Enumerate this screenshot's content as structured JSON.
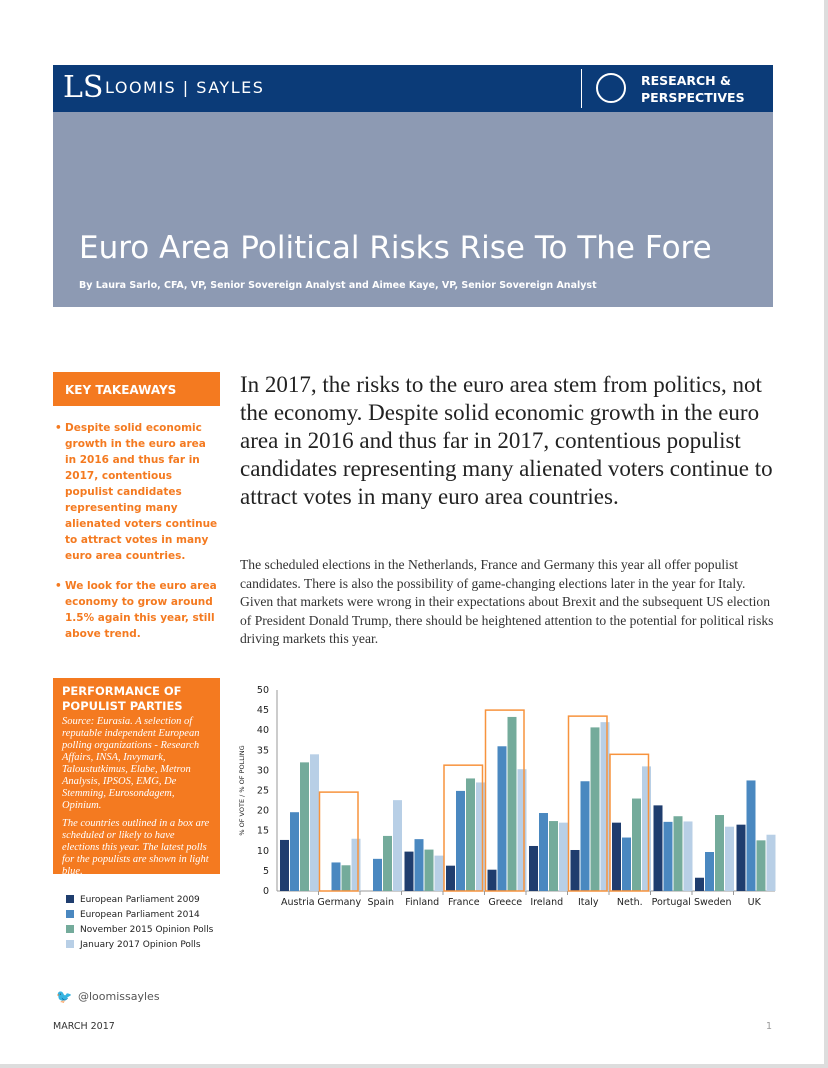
{
  "header": {
    "logo_mark": "LS",
    "logo_text": "LOOMIS | SAYLES",
    "section_icon": "compass-icon",
    "section": "RESEARCH &\nPERSPECTIVES"
  },
  "banner": {
    "title": "Euro Area Political Risks Rise To The Fore",
    "byline": "By Laura Sarlo, CFA, VP, Senior Sovereign Analyst and Aimee Kaye, VP, Senior Sovereign Analyst"
  },
  "key_takeaways": {
    "heading": "KEY TAKEAWAYS",
    "items": [
      "Despite solid economic growth in the euro area in 2016 and thus far in 2017, contentious populist candidates representing many alienated voters continue to attract votes in many euro area countries.",
      "We look for the euro area economy to grow around 1.5% again this year, still above trend."
    ]
  },
  "lead": "In 2017, the risks to the euro area stem from politics, not the economy. Despite solid economic growth in the euro area in 2016 and thus far in 2017, contentious populist candidates representing many alienated voters continue to attract votes in many euro area countries.",
  "paragraph": "The scheduled elections in the Netherlands, France and Germany this year all offer populist candidates. There is also the possibility of game-changing elections later in the year for Italy. Given that markets were wrong in their expectations about Brexit and the subsequent US election of President Donald Trump, there should be heightened attention to the potential for political risks driving markets this year.",
  "performance": {
    "heading": "PERFORMANCE OF POPULIST PARTIES",
    "source": "Source: Eurasia. A selection of reputable independent European polling organizations - Research Affairs, INSA, Invymark, Taloustutkimus, Elabe, Metron Analysis, IPSOS, EMG, De Stemming, Eurosondagem, Opinium.",
    "note": "The countries outlined in a box are scheduled or likely to have elections this year. The latest polls for the populists are shown in light blue."
  },
  "chart_data": {
    "type": "bar",
    "ylabel": "% OF VOTE / % OF POLLING",
    "ylim": [
      0,
      50
    ],
    "yticks": [
      0,
      5,
      10,
      15,
      20,
      25,
      30,
      35,
      40,
      45,
      50
    ],
    "categories": [
      "Austria",
      "Germany",
      "Spain",
      "Finland",
      "France",
      "Greece",
      "Ireland",
      "Italy",
      "Neth.",
      "Portugal",
      "Sweden",
      "UK"
    ],
    "series": [
      {
        "name": "European Parliament 2009",
        "color": "#1f3d6e",
        "values": [
          12.7,
          null,
          null,
          9.8,
          6.3,
          5.3,
          11.2,
          10.2,
          17,
          21.3,
          3.3,
          16.5
        ]
      },
      {
        "name": "European Parliament 2014",
        "color": "#4a88c0",
        "values": [
          19.6,
          7.1,
          8,
          12.9,
          24.9,
          36,
          19.4,
          27.3,
          13.3,
          17.2,
          9.7,
          27.5
        ]
      },
      {
        "name": "November 2015 Opinion Polls",
        "color": "#74ab9b",
        "values": [
          32,
          6.4,
          13.7,
          10.3,
          28,
          43.3,
          17.4,
          40.7,
          23,
          18.6,
          18.9,
          12.6
        ]
      },
      {
        "name": "January 2017 Opinion Polls",
        "color": "#b8cfe6",
        "values": [
          34,
          13,
          22.6,
          8.8,
          27,
          30.3,
          17,
          42,
          31,
          17.3,
          16,
          14
        ]
      }
    ],
    "election_boxes": {
      "color": "#f7933d",
      "countries": [
        "Germany",
        "France",
        "Greece",
        "Italy",
        "Neth."
      ],
      "tops": [
        24.6,
        31.3,
        45,
        43.5,
        34
      ]
    },
    "grid": false,
    "legend": "bottom-left"
  },
  "footer": {
    "twitter_icon": "twitter-icon",
    "handle": "@loomissayles",
    "date": "MARCH 2017",
    "page": "1"
  }
}
